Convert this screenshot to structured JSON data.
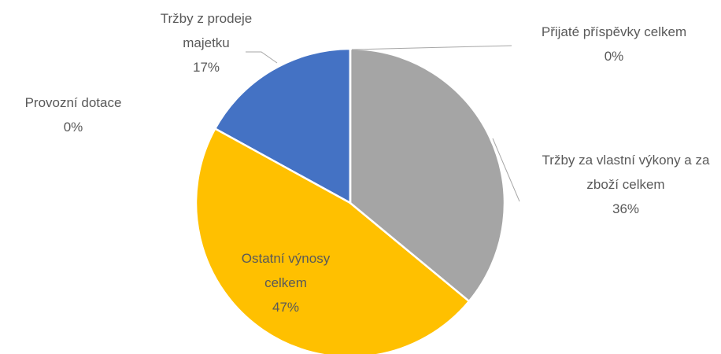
{
  "chart_data": {
    "type": "pie",
    "categories": [
      "Přijaté příspěvky celkem",
      "Tržby za vlastní výkony a za zboží celkem",
      "Ostatní výnosy celkem",
      "Provozní dotace",
      "Tržby z prodeje majetku"
    ],
    "values": [
      0,
      36,
      47,
      0,
      17
    ],
    "value_labels": [
      "0%",
      "36%",
      "47%",
      "0%",
      "17%"
    ],
    "colors": [
      "#ed7d31",
      "#a5a5a5",
      "#ffc000",
      "#5b9bd5",
      "#4472c4"
    ]
  }
}
